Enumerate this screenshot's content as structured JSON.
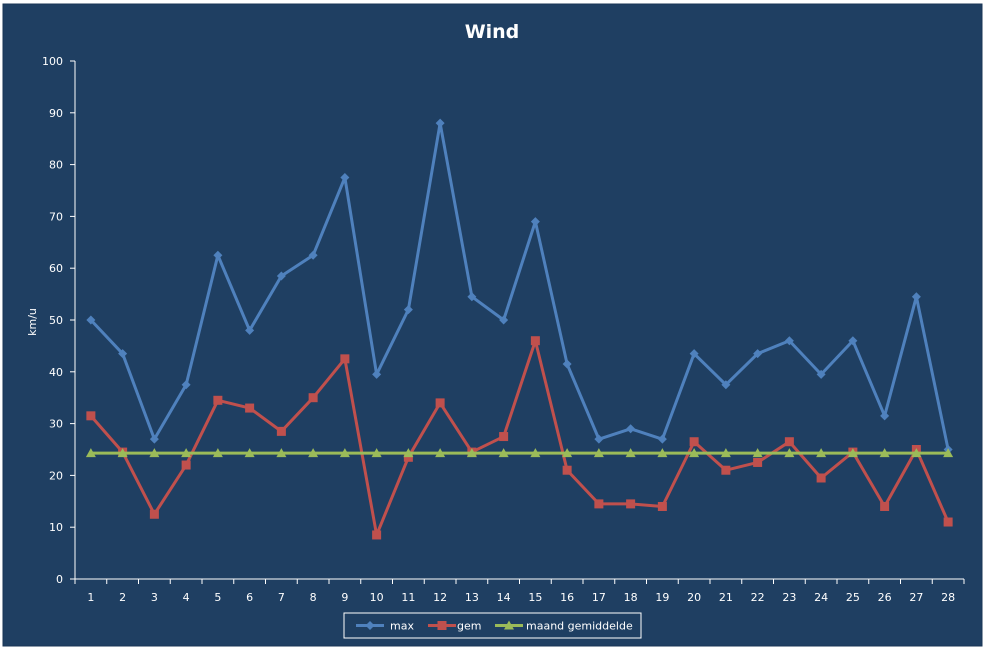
{
  "chart_data": {
    "type": "line",
    "title": "Wind",
    "xlabel": "",
    "ylabel": "km/u",
    "ylim": [
      0,
      100
    ],
    "yticks": [
      0,
      10,
      20,
      30,
      40,
      50,
      60,
      70,
      80,
      90,
      100
    ],
    "categories": [
      "1",
      "2",
      "3",
      "4",
      "5",
      "6",
      "7",
      "8",
      "9",
      "10",
      "11",
      "12",
      "13",
      "14",
      "15",
      "16",
      "17",
      "18",
      "19",
      "20",
      "21",
      "22",
      "23",
      "24",
      "25",
      "26",
      "27",
      "28"
    ],
    "grid": false,
    "legend_position": "bottom",
    "series": [
      {
        "name": "max",
        "color": "#4F81BD",
        "marker": "diamond",
        "values": [
          50,
          43.5,
          27,
          37.5,
          62.5,
          48,
          58.5,
          62.5,
          77.5,
          39.5,
          52,
          88,
          54.5,
          50,
          69,
          41.5,
          27,
          29,
          27,
          43.5,
          37.5,
          43.5,
          46,
          39.5,
          46,
          31.5,
          54.5,
          25
        ]
      },
      {
        "name": "gem",
        "color": "#C0504D",
        "marker": "square",
        "values": [
          31.5,
          24.5,
          12.5,
          22,
          34.5,
          33,
          28.5,
          35,
          42.5,
          8.5,
          23.5,
          34,
          24.5,
          27.5,
          46,
          21,
          14.5,
          14.5,
          14,
          26.5,
          21,
          22.5,
          26.5,
          19.5,
          24.5,
          14,
          25,
          11
        ]
      },
      {
        "name": "maand gemiddelde",
        "color": "#9BBB59",
        "marker": "triangle",
        "values": [
          24.3,
          24.3,
          24.3,
          24.3,
          24.3,
          24.3,
          24.3,
          24.3,
          24.3,
          24.3,
          24.3,
          24.3,
          24.3,
          24.3,
          24.3,
          24.3,
          24.3,
          24.3,
          24.3,
          24.3,
          24.3,
          24.3,
          24.3,
          24.3,
          24.3,
          24.3,
          24.3,
          24.3
        ]
      }
    ]
  },
  "colors": {
    "background": "#1F3F62",
    "axis": "#ffffff",
    "legend_border": "#ffffff"
  }
}
